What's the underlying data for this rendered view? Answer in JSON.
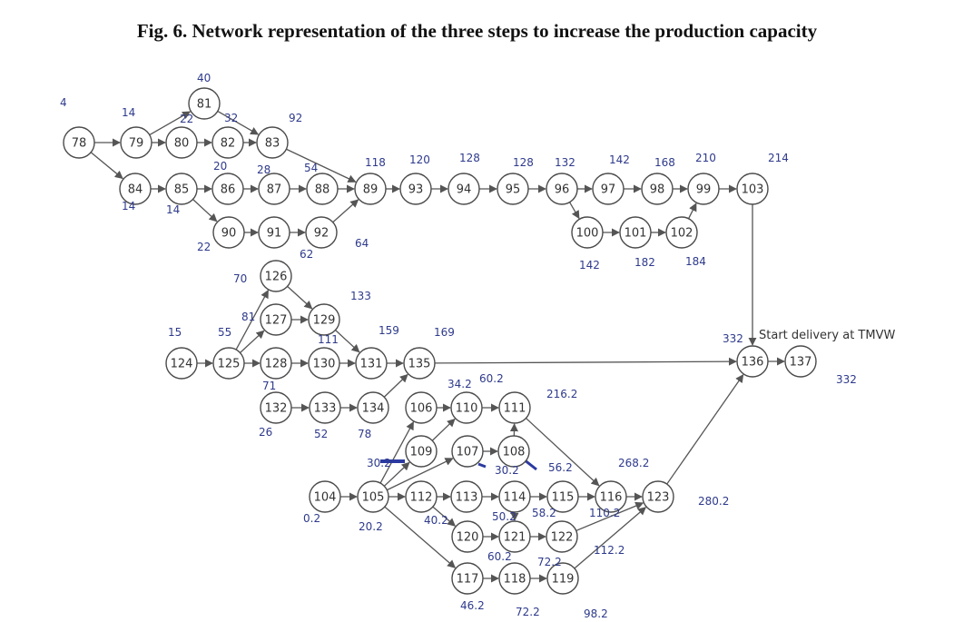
{
  "title": "Fig. 6. Network representation of the three steps to increase the production  capacity",
  "delivery_note": "Start delivery at TMVW",
  "nodes": [
    {
      "id": "78",
      "label": "78"
    },
    {
      "id": "79",
      "label": "79"
    },
    {
      "id": "80",
      "label": "80"
    },
    {
      "id": "81",
      "label": "81"
    },
    {
      "id": "82",
      "label": "82"
    },
    {
      "id": "83",
      "label": "83"
    },
    {
      "id": "84",
      "label": "84"
    },
    {
      "id": "85",
      "label": "85"
    },
    {
      "id": "86",
      "label": "86"
    },
    {
      "id": "87",
      "label": "87"
    },
    {
      "id": "88",
      "label": "88"
    },
    {
      "id": "89",
      "label": "89"
    },
    {
      "id": "90",
      "label": "90"
    },
    {
      "id": "91",
      "label": "91"
    },
    {
      "id": "92",
      "label": "92"
    },
    {
      "id": "93",
      "label": "93"
    },
    {
      "id": "94",
      "label": "94"
    },
    {
      "id": "95",
      "label": "95"
    },
    {
      "id": "96",
      "label": "96"
    },
    {
      "id": "97",
      "label": "97"
    },
    {
      "id": "98",
      "label": "98"
    },
    {
      "id": "99",
      "label": "99"
    },
    {
      "id": "103",
      "label": "103"
    },
    {
      "id": "100",
      "label": "100"
    },
    {
      "id": "101",
      "label": "101"
    },
    {
      "id": "102",
      "label": "102"
    },
    {
      "id": "126",
      "label": "126"
    },
    {
      "id": "127",
      "label": "127"
    },
    {
      "id": "129",
      "label": "129"
    },
    {
      "id": "124",
      "label": "124"
    },
    {
      "id": "125",
      "label": "125"
    },
    {
      "id": "128",
      "label": "128"
    },
    {
      "id": "130",
      "label": "130"
    },
    {
      "id": "131",
      "label": "131"
    },
    {
      "id": "135",
      "label": "135"
    },
    {
      "id": "136",
      "label": "136"
    },
    {
      "id": "137",
      "label": "137"
    },
    {
      "id": "132",
      "label": "132"
    },
    {
      "id": "133",
      "label": "133"
    },
    {
      "id": "134",
      "label": "134"
    },
    {
      "id": "106",
      "label": "106"
    },
    {
      "id": "110",
      "label": "110"
    },
    {
      "id": "111",
      "label": "111"
    },
    {
      "id": "109",
      "label": "109"
    },
    {
      "id": "107",
      "label": "107"
    },
    {
      "id": "108",
      "label": "108"
    },
    {
      "id": "104",
      "label": "104"
    },
    {
      "id": "105",
      "label": "105"
    },
    {
      "id": "112",
      "label": "112"
    },
    {
      "id": "113",
      "label": "113"
    },
    {
      "id": "114",
      "label": "114"
    },
    {
      "id": "115",
      "label": "115"
    },
    {
      "id": "116",
      "label": "116"
    },
    {
      "id": "123",
      "label": "123"
    },
    {
      "id": "120",
      "label": "120"
    },
    {
      "id": "121",
      "label": "121"
    },
    {
      "id": "122",
      "label": "122"
    },
    {
      "id": "117",
      "label": "117"
    },
    {
      "id": "118",
      "label": "118"
    },
    {
      "id": "119",
      "label": "119"
    }
  ],
  "edges": [
    [
      "78",
      "79"
    ],
    [
      "78",
      "84"
    ],
    [
      "79",
      "80"
    ],
    [
      "79",
      "81"
    ],
    [
      "80",
      "82"
    ],
    [
      "82",
      "83"
    ],
    [
      "81",
      "83"
    ],
    [
      "83",
      "89"
    ],
    [
      "84",
      "85"
    ],
    [
      "85",
      "86"
    ],
    [
      "85",
      "90"
    ],
    [
      "86",
      "87"
    ],
    [
      "87",
      "88"
    ],
    [
      "88",
      "89"
    ],
    [
      "90",
      "91"
    ],
    [
      "91",
      "92"
    ],
    [
      "92",
      "89"
    ],
    [
      "89",
      "93"
    ],
    [
      "93",
      "94"
    ],
    [
      "94",
      "95"
    ],
    [
      "95",
      "96"
    ],
    [
      "96",
      "97"
    ],
    [
      "96",
      "100"
    ],
    [
      "97",
      "98"
    ],
    [
      "98",
      "99"
    ],
    [
      "99",
      "103"
    ],
    [
      "100",
      "101"
    ],
    [
      "101",
      "102"
    ],
    [
      "102",
      "99"
    ],
    [
      "103",
      "136"
    ],
    [
      "124",
      "125"
    ],
    [
      "125",
      "126"
    ],
    [
      "125",
      "127"
    ],
    [
      "125",
      "128"
    ],
    [
      "126",
      "129"
    ],
    [
      "127",
      "129"
    ],
    [
      "128",
      "130"
    ],
    [
      "129",
      "131"
    ],
    [
      "130",
      "131"
    ],
    [
      "131",
      "135"
    ],
    [
      "132",
      "133"
    ],
    [
      "133",
      "134"
    ],
    [
      "134",
      "135"
    ],
    [
      "135",
      "136"
    ],
    [
      "136",
      "137"
    ],
    [
      "104",
      "105"
    ],
    [
      "105",
      "106"
    ],
    [
      "105",
      "109"
    ],
    [
      "105",
      "107"
    ],
    [
      "105",
      "112"
    ],
    [
      "105",
      "117"
    ],
    [
      "106",
      "110"
    ],
    [
      "110",
      "111"
    ],
    [
      "109",
      "110"
    ],
    [
      "107",
      "108"
    ],
    [
      "108",
      "111"
    ],
    [
      "111",
      "116"
    ],
    [
      "112",
      "113"
    ],
    [
      "112",
      "120"
    ],
    [
      "113",
      "114"
    ],
    [
      "114",
      "115"
    ],
    [
      "115",
      "116"
    ],
    [
      "116",
      "123"
    ],
    [
      "120",
      "121"
    ],
    [
      "121",
      "122"
    ],
    [
      "114",
      "121"
    ],
    [
      "122",
      "123"
    ],
    [
      "117",
      "118"
    ],
    [
      "118",
      "119"
    ],
    [
      "119",
      "123"
    ],
    [
      "123",
      "136"
    ]
  ],
  "times": [
    "4",
    "14",
    "40",
    "22",
    "32",
    "92",
    "14",
    "14",
    "20",
    "28",
    "54",
    "118",
    "22",
    "62",
    "64",
    "120",
    "128",
    "128",
    "132",
    "142",
    "168",
    "210",
    "214",
    "142",
    "182",
    "184",
    "70",
    "133",
    "81",
    "15",
    "55",
    "111",
    "159",
    "169",
    "71",
    "26",
    "52",
    "78",
    "34.2",
    "60.2",
    "216.2",
    "30.2",
    "30.2",
    "56.2",
    "268.2",
    "0.2",
    "20.2",
    "40.2",
    "50.2",
    "58.2",
    "110.2",
    "280.2",
    "60.2",
    "72.2",
    "112.2",
    "46.2",
    "72.2",
    "98.2",
    "332",
    "332"
  ]
}
